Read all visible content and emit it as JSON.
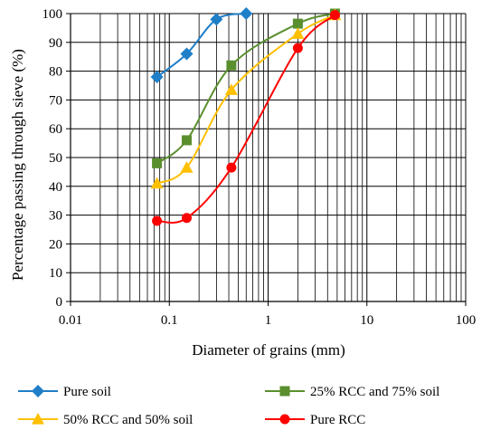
{
  "chart_data": {
    "type": "line",
    "title": "",
    "xlabel": "Diameter of grains (mm)",
    "ylabel": "Percentage passing through sieve (%)",
    "xscale": "log",
    "xlim": [
      0.01,
      100
    ],
    "ylim": [
      0,
      100
    ],
    "x_ticks": [
      0.01,
      0.1,
      1,
      10,
      100
    ],
    "x_tick_labels": [
      "0.01",
      "0.1",
      "1",
      "10",
      "100"
    ],
    "y_ticks": [
      0,
      10,
      20,
      30,
      40,
      50,
      60,
      70,
      80,
      90,
      100
    ],
    "y_tick_labels": [
      "0",
      "10",
      "20",
      "30",
      "40",
      "50",
      "60",
      "70",
      "80",
      "90",
      "100"
    ],
    "grid": "major and minor",
    "legend_position": "bottom",
    "series": [
      {
        "name": "Pure soil",
        "color": "#1f7fc8",
        "marker": "diamond",
        "x": [
          0.075,
          0.15,
          0.3,
          0.6
        ],
        "y": [
          78,
          86,
          98,
          100
        ]
      },
      {
        "name": "25% RCC and 75% soil",
        "color": "#5a8f2e",
        "marker": "square",
        "x": [
          0.075,
          0.15,
          0.425,
          2,
          4.75
        ],
        "y": [
          48,
          56,
          82,
          96.5,
          100
        ]
      },
      {
        "name": "50% RCC and 50% soil",
        "color": "#ffc000",
        "marker": "triangle",
        "x": [
          0.075,
          0.15,
          0.425,
          2,
          4.75
        ],
        "y": [
          41,
          46.5,
          73.5,
          93,
          99.5
        ]
      },
      {
        "name": "Pure RCC",
        "color": "#ff0000",
        "marker": "circle",
        "x": [
          0.075,
          0.15,
          0.425,
          2,
          4.75
        ],
        "y": [
          28,
          29,
          46.5,
          88,
          99.5
        ]
      }
    ]
  }
}
